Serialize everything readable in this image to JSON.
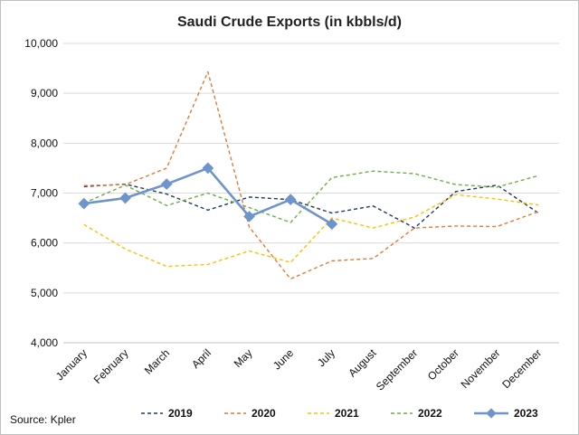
{
  "chart_data": {
    "type": "line",
    "title": "Saudi Crude Exports (in kbbls/d)",
    "xlabel": "",
    "ylabel": "",
    "categories": [
      "January",
      "February",
      "March",
      "April",
      "May",
      "June",
      "July",
      "August",
      "September",
      "October",
      "November",
      "December"
    ],
    "yticks": [
      "4,000",
      "5,000",
      "6,000",
      "7,000",
      "8,000",
      "9,000",
      "10,000"
    ],
    "ylim": [
      4000,
      10000
    ],
    "grid": true,
    "legend_position": "bottom",
    "series": [
      {
        "name": "2019",
        "color": "#1f3864",
        "dash": true,
        "marker": false,
        "values": [
          7130,
          7180,
          6980,
          6660,
          6920,
          6870,
          6600,
          6740,
          6300,
          7030,
          7160,
          6600
        ]
      },
      {
        "name": "2020",
        "color": "#e07b39",
        "dash": true,
        "marker": false,
        "values": [
          7150,
          7170,
          7500,
          9430,
          6320,
          5280,
          5640,
          5690,
          6300,
          6340,
          6330,
          6630
        ]
      },
      {
        "name": "2021",
        "color": "#ffc000",
        "dash": true,
        "marker": false,
        "values": [
          6370,
          5880,
          5530,
          5570,
          5840,
          5610,
          6500,
          6300,
          6520,
          6970,
          6880,
          6760
        ]
      },
      {
        "name": "2022",
        "color": "#70ad47",
        "dash": true,
        "marker": false,
        "values": [
          6800,
          7160,
          6750,
          7000,
          6710,
          6410,
          7310,
          7440,
          7390,
          7170,
          7120,
          7350
        ]
      },
      {
        "name": "2023",
        "color": "#6d95cc",
        "dash": false,
        "marker": true,
        "values": [
          6790,
          6900,
          7180,
          7500,
          6530,
          6870,
          6380,
          null,
          null,
          null,
          null,
          null
        ]
      }
    ],
    "source": "Source: Kpler"
  }
}
